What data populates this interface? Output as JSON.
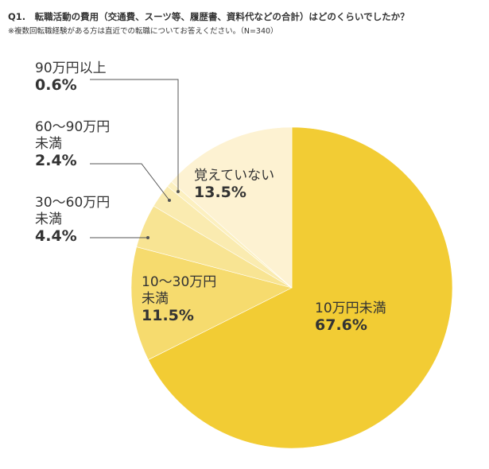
{
  "question": "Q1.　転職活動の費用（交通費、スーツ等、履歴書、資料代などの合計）はどのくらいでしたか？",
  "note": "※複数回転職経験がある方は直近での転職についてお答えください。（N=340）",
  "chart_data": {
    "type": "pie",
    "start_angle_deg": 0,
    "direction": "clockwise",
    "slices": [
      {
        "label_lines": [
          "10万円未満"
        ],
        "value": 67.6,
        "pct": "67.6%",
        "color": "#f2cc34"
      },
      {
        "label_lines": [
          "10～30万円",
          "未満"
        ],
        "value": 11.5,
        "pct": "11.5%",
        "color": "#f6db6e"
      },
      {
        "label_lines": [
          "30～60万円",
          "未満"
        ],
        "value": 4.4,
        "pct": "4.4%",
        "color": "#f8e493"
      },
      {
        "label_lines": [
          "60～90万円",
          "未満"
        ],
        "value": 2.4,
        "pct": "2.4%",
        "color": "#faebb0"
      },
      {
        "label_lines": [
          "90万円以上"
        ],
        "value": 0.6,
        "pct": "0.6%",
        "color": "#fcf0c0"
      },
      {
        "label_lines": [
          "覚えていない"
        ],
        "value": 13.5,
        "pct": "13.5%",
        "color": "#fdf2d2"
      }
    ]
  }
}
